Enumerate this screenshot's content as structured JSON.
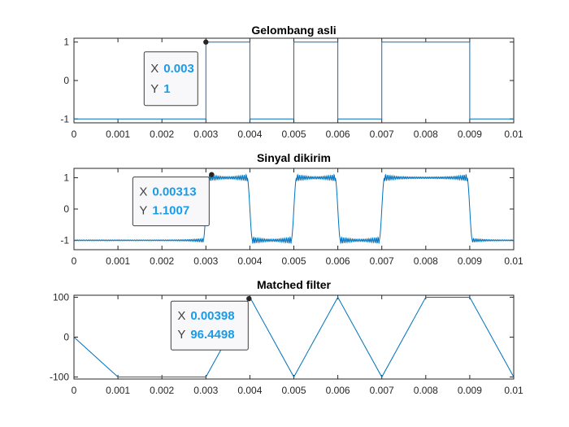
{
  "colors": {
    "line": "#0072bd",
    "axes": "#262626",
    "tip_value": "#1a9be8",
    "tip_border": "#404040",
    "tip_bg": "#f8f8fa"
  },
  "chart_data": [
    {
      "type": "line",
      "title": "Gelombang asli",
      "xlim": [
        0,
        0.01
      ],
      "ylim": [
        -1.1,
        1.1
      ],
      "xticks": [
        "0",
        "0.001",
        "0.002",
        "0.003",
        "0.004",
        "0.005",
        "0.006",
        "0.007",
        "0.008",
        "0.009",
        "0.01"
      ],
      "yticks": [
        -1,
        0,
        1
      ],
      "series": [
        {
          "x": [
            0,
            0.003,
            0.003,
            0.004,
            0.004,
            0.005,
            0.005,
            0.006,
            0.006,
            0.007,
            0.007,
            0.009,
            0.009,
            0.01
          ],
          "y": [
            -1,
            -1,
            1,
            1,
            -1,
            -1,
            1,
            1,
            -1,
            -1,
            1,
            1,
            -1,
            -1
          ]
        }
      ],
      "datatip": {
        "x": 0.003,
        "y": 1,
        "x_label": "X",
        "y_label": "Y",
        "x_text": "0.003",
        "y_text": "1"
      }
    },
    {
      "type": "line",
      "title": "Sinyal dikirim",
      "xlim": [
        0,
        0.01
      ],
      "ylim": [
        -1.3,
        1.3
      ],
      "xticks": [
        "0",
        "0.001",
        "0.002",
        "0.003",
        "0.004",
        "0.005",
        "0.006",
        "0.007",
        "0.008",
        "0.009",
        "0.01"
      ],
      "yticks": [
        -1,
        0,
        1
      ],
      "series": [
        {
          "edges": [
            0.003,
            0.004,
            0.005,
            0.006,
            0.007,
            0.009
          ],
          "start_level": -1,
          "ringing": "gibbs"
        }
      ],
      "datatip": {
        "x": 0.00313,
        "y": 1.1007,
        "x_label": "X",
        "y_label": "Y",
        "x_text": "0.00313",
        "y_text": "1.1007"
      }
    },
    {
      "type": "line",
      "title": "Matched filter",
      "xlim": [
        0,
        0.01
      ],
      "ylim": [
        -105,
        105
      ],
      "xticks": [
        "0",
        "0.001",
        "0.002",
        "0.003",
        "0.004",
        "0.005",
        "0.006",
        "0.007",
        "0.008",
        "0.009",
        "0.01"
      ],
      "yticks": [
        -100,
        0,
        100
      ],
      "series": [
        {
          "x": [
            0,
            0.001,
            0.003,
            0.004,
            0.005,
            0.006,
            0.007,
            0.008,
            0.009,
            0.01
          ],
          "y": [
            0,
            -100,
            -100,
            100,
            -100,
            100,
            -100,
            100,
            100,
            -100
          ]
        }
      ],
      "datatip": {
        "x": 0.00398,
        "y": 96.4498,
        "x_label": "X",
        "y_label": "Y",
        "x_text": "0.00398",
        "y_text": "96.4498"
      }
    }
  ]
}
